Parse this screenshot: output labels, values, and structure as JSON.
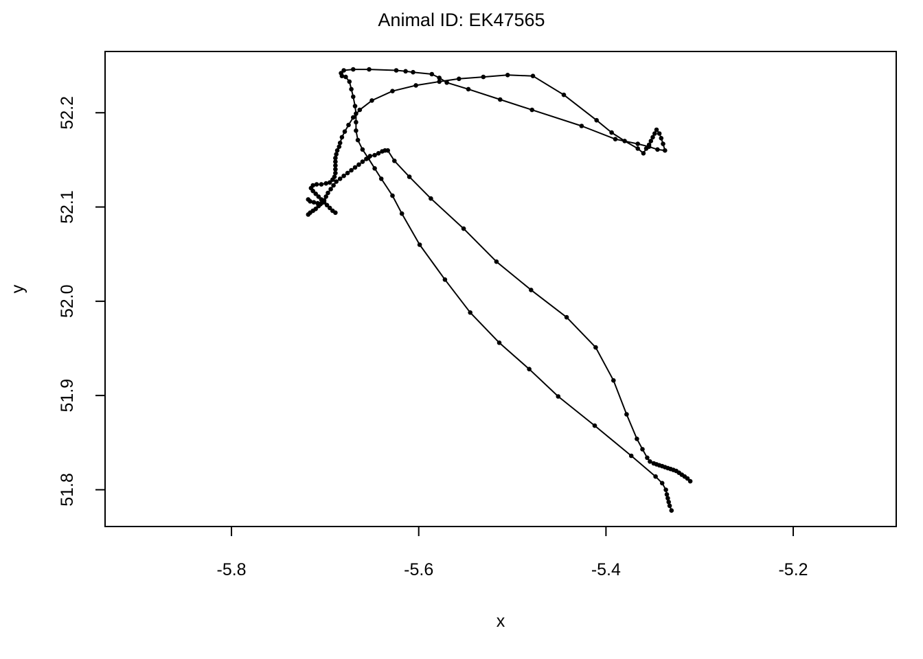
{
  "chart_data": {
    "type": "line",
    "title": "Animal ID: EK47565",
    "xlabel": "x",
    "ylabel": "y",
    "xlim": [
      -5.935,
      -5.09
    ],
    "ylim": [
      51.761,
      52.265
    ],
    "xticks": [
      -5.8,
      -5.6,
      -5.4,
      -5.2
    ],
    "xtick_labels": [
      "-5.8",
      "-5.6",
      "-5.4",
      "-5.2"
    ],
    "yticks": [
      51.8,
      51.9,
      52.0,
      52.1,
      52.2
    ],
    "ytick_labels": [
      "51.8",
      "51.9",
      "52.0",
      "52.1",
      "52.2"
    ],
    "grid": false,
    "legend": "none",
    "line_color": "#000000",
    "series": [
      {
        "markers": true,
        "points": [
          [
            -5.689,
            52.094
          ],
          [
            -5.692,
            52.096
          ],
          [
            -5.695,
            52.099
          ],
          [
            -5.698,
            52.102
          ],
          [
            -5.701,
            52.105
          ],
          [
            -5.704,
            52.108
          ],
          [
            -5.707,
            52.111
          ],
          [
            -5.71,
            52.114
          ],
          [
            -5.713,
            52.117
          ],
          [
            -5.715,
            52.12
          ],
          [
            -5.713,
            52.123
          ],
          [
            -5.709,
            52.124
          ],
          [
            -5.704,
            52.124
          ],
          [
            -5.699,
            52.125
          ],
          [
            -5.695,
            52.126
          ],
          [
            -5.692,
            52.129
          ],
          [
            -5.69,
            52.132
          ],
          [
            -5.689,
            52.136
          ],
          [
            -5.689,
            52.14
          ],
          [
            -5.689,
            52.144
          ],
          [
            -5.689,
            52.148
          ],
          [
            -5.689,
            52.152
          ],
          [
            -5.688,
            52.156
          ],
          [
            -5.687,
            52.16
          ],
          [
            -5.685,
            52.164
          ],
          [
            -5.684,
            52.168
          ],
          [
            -5.682,
            52.174
          ],
          [
            -5.679,
            52.18
          ],
          [
            -5.675,
            52.187
          ],
          [
            -5.67,
            52.195
          ],
          [
            -5.663,
            52.203
          ],
          [
            -5.65,
            52.213
          ],
          [
            -5.628,
            52.223
          ],
          [
            -5.603,
            52.229
          ],
          [
            -5.578,
            52.233
          ],
          [
            -5.557,
            52.236
          ],
          [
            -5.531,
            52.238
          ],
          [
            -5.505,
            52.24
          ],
          [
            -5.478,
            52.239
          ],
          [
            -5.445,
            52.219
          ],
          [
            -5.41,
            52.192
          ],
          [
            -5.394,
            52.179
          ],
          [
            -5.38,
            52.17
          ],
          [
            -5.366,
            52.162
          ],
          [
            -5.36,
            52.157
          ],
          [
            -5.357,
            52.162
          ],
          [
            -5.354,
            52.166
          ],
          [
            -5.352,
            52.17
          ],
          [
            -5.35,
            52.174
          ],
          [
            -5.348,
            52.178
          ],
          [
            -5.346,
            52.182
          ],
          [
            -5.343,
            52.178
          ],
          [
            -5.341,
            52.173
          ],
          [
            -5.339,
            52.167
          ],
          [
            -5.337,
            52.16
          ],
          [
            -5.345,
            52.161
          ],
          [
            -5.354,
            52.164
          ],
          [
            -5.366,
            52.167
          ],
          [
            -5.39,
            52.172
          ],
          [
            -5.426,
            52.186
          ],
          [
            -5.479,
            52.203
          ],
          [
            -5.513,
            52.214
          ],
          [
            -5.547,
            52.225
          ],
          [
            -5.57,
            52.232
          ],
          [
            -5.578,
            52.237
          ],
          [
            -5.586,
            52.241
          ],
          [
            -5.606,
            52.243
          ],
          [
            -5.614,
            52.244
          ],
          [
            -5.624,
            52.245
          ],
          [
            -5.653,
            52.246
          ],
          [
            -5.67,
            52.246
          ],
          [
            -5.68,
            52.245
          ],
          [
            -5.683,
            52.242
          ],
          [
            -5.682,
            52.239
          ],
          [
            -5.678,
            52.238
          ],
          [
            -5.674,
            52.233
          ],
          [
            -5.672,
            52.225
          ],
          [
            -5.67,
            52.217
          ],
          [
            -5.668,
            52.207
          ],
          [
            -5.667,
            52.199
          ],
          [
            -5.667,
            52.19
          ],
          [
            -5.667,
            52.181
          ],
          [
            -5.665,
            52.171
          ],
          [
            -5.66,
            52.161
          ],
          [
            -5.654,
            52.152
          ],
          [
            -5.647,
            52.141
          ],
          [
            -5.64,
            52.13
          ],
          [
            -5.628,
            52.112
          ],
          [
            -5.618,
            52.093
          ],
          [
            -5.599,
            52.06
          ],
          [
            -5.572,
            52.023
          ],
          [
            -5.545,
            51.988
          ],
          [
            -5.514,
            51.956
          ],
          [
            -5.482,
            51.928
          ],
          [
            -5.451,
            51.899
          ],
          [
            -5.412,
            51.868
          ],
          [
            -5.373,
            51.836
          ],
          [
            -5.347,
            51.814
          ],
          [
            -5.34,
            51.807
          ],
          [
            -5.336,
            51.8
          ],
          [
            -5.335,
            51.795
          ],
          [
            -5.334,
            51.791
          ],
          [
            -5.333,
            51.787
          ],
          [
            -5.332,
            51.783
          ],
          [
            -5.33,
            51.778
          ]
        ]
      },
      {
        "markers": true,
        "points": [
          [
            -5.718,
            52.092
          ],
          [
            -5.716,
            52.094
          ],
          [
            -5.713,
            52.096
          ],
          [
            -5.71,
            52.098
          ],
          [
            -5.707,
            52.101
          ],
          [
            -5.704,
            52.104
          ],
          [
            -5.701,
            52.107
          ],
          [
            -5.699,
            52.111
          ],
          [
            -5.697,
            52.115
          ],
          [
            -5.694,
            52.119
          ],
          [
            -5.691,
            52.123
          ],
          [
            -5.688,
            52.127
          ],
          [
            -5.684,
            52.13
          ],
          [
            -5.68,
            52.133
          ],
          [
            -5.676,
            52.136
          ],
          [
            -5.672,
            52.139
          ],
          [
            -5.668,
            52.142
          ],
          [
            -5.664,
            52.145
          ],
          [
            -5.66,
            52.148
          ],
          [
            -5.656,
            52.151
          ],
          [
            -5.652,
            52.154
          ],
          [
            -5.647,
            52.155
          ],
          [
            -5.643,
            52.157
          ],
          [
            -5.639,
            52.159
          ],
          [
            -5.636,
            52.16
          ],
          [
            -5.633,
            52.16
          ],
          [
            -5.626,
            52.149
          ],
          [
            -5.61,
            52.132
          ],
          [
            -5.587,
            52.109
          ],
          [
            -5.552,
            52.077
          ],
          [
            -5.517,
            52.042
          ],
          [
            -5.48,
            52.012
          ],
          [
            -5.442,
            51.983
          ],
          [
            -5.411,
            51.951
          ],
          [
            -5.392,
            51.916
          ],
          [
            -5.378,
            51.88
          ],
          [
            -5.367,
            51.854
          ],
          [
            -5.361,
            51.843
          ],
          [
            -5.356,
            51.834
          ],
          [
            -5.353,
            51.83
          ],
          [
            -5.349,
            51.828
          ],
          [
            -5.346,
            51.827
          ],
          [
            -5.343,
            51.826
          ],
          [
            -5.34,
            51.825
          ],
          [
            -5.337,
            51.824
          ],
          [
            -5.334,
            51.823
          ],
          [
            -5.331,
            51.822
          ],
          [
            -5.328,
            51.821
          ],
          [
            -5.325,
            51.82
          ],
          [
            -5.322,
            51.818
          ],
          [
            -5.319,
            51.816
          ],
          [
            -5.316,
            51.814
          ],
          [
            -5.313,
            51.812
          ],
          [
            -5.31,
            51.809
          ]
        ]
      },
      {
        "markers": true,
        "points": [
          [
            -5.718,
            52.108
          ],
          [
            -5.716,
            52.106
          ],
          [
            -5.712,
            52.105
          ],
          [
            -5.708,
            52.104
          ],
          [
            -5.705,
            52.103
          ]
        ]
      }
    ]
  }
}
